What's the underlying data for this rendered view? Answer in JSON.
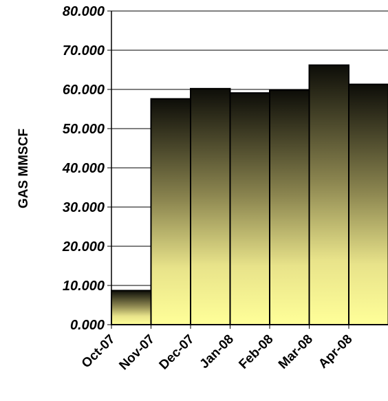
{
  "chart_data": {
    "type": "bar",
    "title": "",
    "xlabel": "",
    "ylabel": "GAS MMSCF",
    "categories": [
      "Oct-07",
      "Nov-07",
      "Dec-07",
      "Jan-08",
      "Feb-08",
      "Mar-08",
      "Apr-08"
    ],
    "values": [
      8.7,
      57.6,
      60.2,
      59.1,
      59.8,
      66.2,
      61.3
    ],
    "ylim": [
      0,
      80
    ],
    "yticks": [
      "0.000",
      "10.000",
      "20.000",
      "30.000",
      "40.000",
      "50.000",
      "60.000",
      "70.000",
      "80.000"
    ],
    "grid": true,
    "legend": "none",
    "colors": {
      "bar_top": "#0d0d08",
      "bar_mid": "#b8b06a",
      "bar_bottom": "#ffff99",
      "grid": "#000000"
    }
  }
}
